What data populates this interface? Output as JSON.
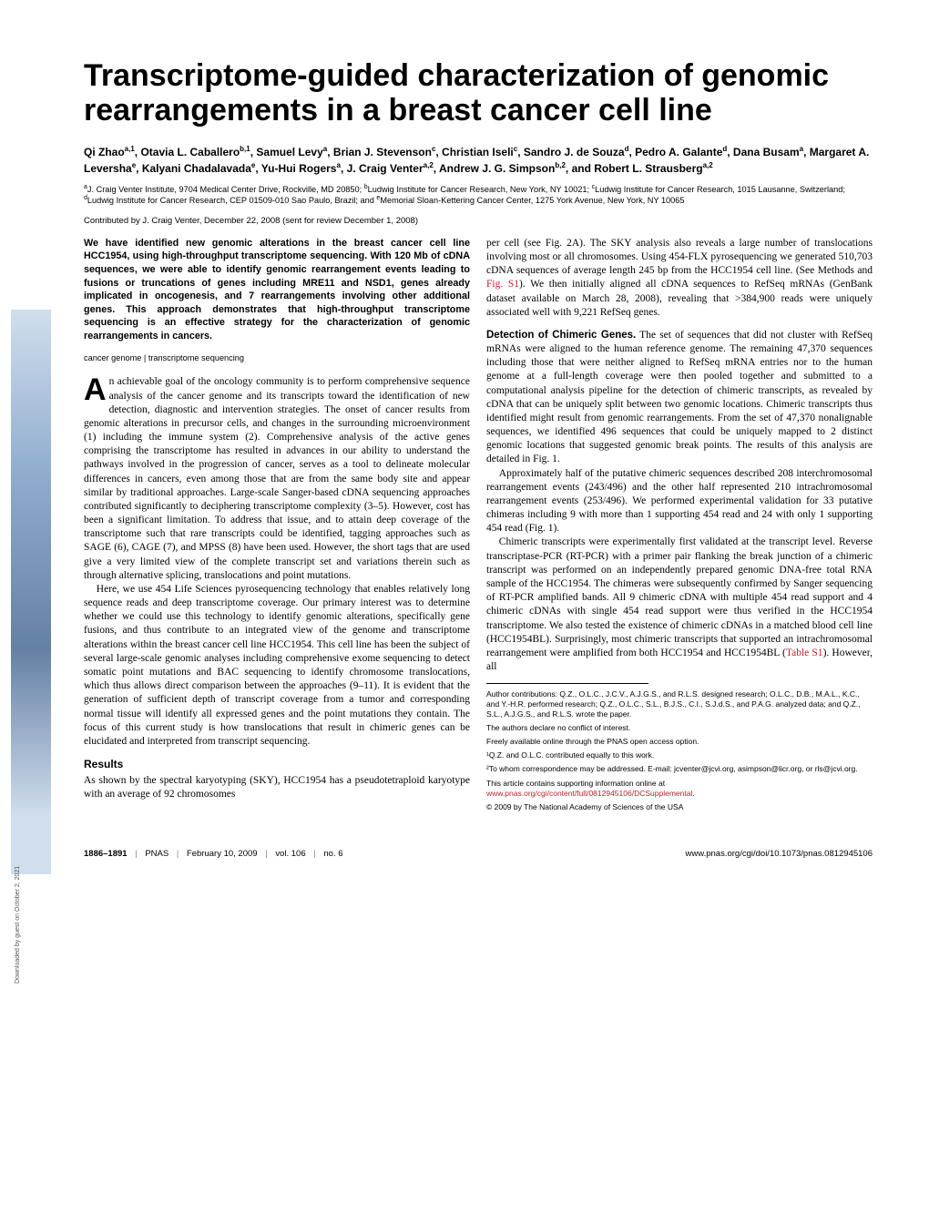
{
  "title": "Transcriptome-guided characterization of genomic rearrangements in a breast cancer cell line",
  "authors_html": "Qi Zhao<sup>a,1</sup>, Otavia L. Caballero<sup>b,1</sup>, Samuel Levy<sup>a</sup>, Brian J. Stevenson<sup>c</sup>, Christian Iseli<sup>c</sup>, Sandro J. de Souza<sup>d</sup>, Pedro A. Galante<sup>d</sup>, Dana Busam<sup>a</sup>, Margaret A. Leversha<sup>e</sup>, Kalyani Chadalavada<sup>e</sup>, Yu-Hui Rogers<sup>a</sup>, J. Craig Venter<sup>a,2</sup>, Andrew J. G. Simpson<sup>b,2</sup>, and Robert L. Strausberg<sup>a,2</sup>",
  "affiliations_html": "<sup>a</sup>J. Craig Venter Institute, 9704 Medical Center Drive, Rockville, MD 20850; <sup>b</sup>Ludwig Institute for Cancer Research, New York, NY 10021; <sup>c</sup>Ludwig Institute for Cancer Research, 1015 Lausanne, Switzerland; <sup>d</sup>Ludwig Institute for Cancer Research, CEP 01509-010 Sao Paulo, Brazil; and <sup>e</sup>Memorial Sloan-Kettering Cancer Center, 1275 York Avenue, New York, NY 10065",
  "contributed": "Contributed by J. Craig Venter, December 22, 2008 (sent for review December 1, 2008)",
  "abstract": "We have identified new genomic alterations in the breast cancer cell line HCC1954, using high-throughput transcriptome sequencing. With 120 Mb of cDNA sequences, we were able to identify genomic rearrangement events leading to fusions or truncations of genes including MRE11 and NSD1, genes already implicated in oncogenesis, and 7 rearrangements involving other additional genes. This approach demonstrates that high-throughput transcriptome sequencing is an effective strategy for the characterization of genomic rearrangements in cancers.",
  "keywords": "cancer genome | transcriptome sequencing",
  "col1_para1": "n achievable goal of the oncology community is to perform comprehensive sequence analysis of the cancer genome and its transcripts toward the identification of new detection, diagnostic and intervention strategies. The onset of cancer results from genomic alterations in precursor cells, and changes in the surrounding microenvironment (1) including the immune system (2). Comprehensive analysis of the active genes comprising the transcriptome has resulted in advances in our ability to understand the pathways involved in the progression of cancer, serves as a tool to delineate molecular differences in cancers, even among those that are from the same body site and appear similar by traditional approaches. Large-scale Sanger-based cDNA sequencing approaches contributed significantly to deciphering transcriptome complexity (3–5). However, cost has been a significant limitation. To address that issue, and to attain deep coverage of the transcriptome such that rare transcripts could be identified, tagging approaches such as SAGE (6), CAGE (7), and MPSS (8) have been used. However, the short tags that are used give a very limited view of the complete transcript set and variations therein such as through alternative splicing, translocations and point mutations.",
  "col1_para2": "Here, we use 454 Life Sciences pyrosequencing technology that enables relatively long sequence reads and deep transcriptome coverage. Our primary interest was to determine whether we could use this technology to identify genomic alterations, specifically gene fusions, and thus contribute to an integrated view of the genome and transcriptome alterations within the breast cancer cell line HCC1954. This cell line has been the subject of several large-scale genomic analyses including comprehensive exome sequencing to detect somatic point mutations and BAC sequencing to identify chromosome translocations, which thus allows direct comparison between the approaches (9–11). It is evident that the generation of sufficient depth of transcript coverage from a tumor and corresponding normal tissue will identify all expressed genes and the point mutations they contain. The focus of this current study is how translocations that result in chimeric genes can be elucidated and interpreted from transcript sequencing.",
  "results_heading": "Results",
  "col1_results": "As shown by the spectral karyotyping (SKY), HCC1954 has a pseudotetraploid karyotype with an average of 92 chromosomes",
  "col2_para1_pre": "per cell (see Fig. 2A). The SKY analysis also reveals a large number of translocations involving most or all chromosomes. Using 454-FLX pyrosequencing we generated 510,703 cDNA sequences of average length 245 bp from the HCC1954 cell line. (See Methods and ",
  "col2_para1_link": "Fig. S1",
  "col2_para1_post": "). We then initially aligned all cDNA sequences to RefSeq mRNAs (GenBank dataset available on March 28, 2008), revealing that >384,900 reads were uniquely associated well with 9,221 RefSeq genes.",
  "col2_heading": "Detection of Chimeric Genes.",
  "col2_para2": " The set of sequences that did not cluster with RefSeq mRNAs were aligned to the human reference genome. The remaining 47,370 sequences including those that were neither aligned to RefSeq mRNA entries nor to the human genome at a full-length coverage were then pooled together and submitted to a computational analysis pipeline for the detection of chimeric transcripts, as revealed by cDNA that can be uniquely split between two genomic locations. Chimeric transcripts thus identified might result from genomic rearrangements. From the set of 47,370 nonalignable sequences, we identified 496 sequences that could be uniquely mapped to 2 distinct genomic locations that suggested genomic break points. The results of this analysis are detailed in Fig. 1.",
  "col2_para3": "Approximately half of the putative chimeric sequences described 208 interchromosomal rearrangement events (243/496) and the other half represented 210 intrachromosomal rearrangement events (253/496). We performed experimental validation for 33 putative chimeras including 9 with more than 1 supporting 454 read and 24 with only 1 supporting 454 read (Fig. 1).",
  "col2_para4_pre": "Chimeric transcripts were experimentally first validated at the transcript level. Reverse transcriptase-PCR (RT-PCR) with a primer pair flanking the break junction of a chimeric transcript was performed on an independently prepared genomic DNA-free total RNA sample of the HCC1954. The chimeras were subsequently confirmed by Sanger sequencing of RT-PCR amplified bands. All 9 chimeric cDNA with multiple 454 read support and 4 chimeric cDNAs with single 454 read support were thus verified in the HCC1954 transcriptome. We also tested the existence of chimeric cDNAs in a matched blood cell line (HCC1954BL). Surprisingly, most chimeric transcripts that supported an intrachromosomal rearrangement were amplified from both HCC1954 and HCC1954BL (",
  "col2_para4_link": "Table S1",
  "col2_para4_post": "). However, all",
  "footnotes": {
    "contrib": "Author contributions: Q.Z., O.L.C., J.C.V., A.J.G.S., and R.L.S. designed research; O.L.C., D.B., M.A.L., K.C., and Y.-H.R. performed research; Q.Z., O.L.C., S.L., B.J.S., C.I., S.J.d.S., and P.A.G. analyzed data; and Q.Z., S.L., A.J.G.S., and R.L.S. wrote the paper.",
    "conflict": "The authors declare no conflict of interest.",
    "openaccess": "Freely available online through the PNAS open access option.",
    "equal": "¹Q.Z. and O.L.C. contributed equally to this work.",
    "corresp": "²To whom correspondence may be addressed. E-mail: jcventer@jcvi.org, asimpson@licr.org, or rls@jcvi.org.",
    "supp_pre": "This article contains supporting information online at ",
    "supp_link": "www.pnas.org/cgi/content/full/0812945106/DCSupplemental",
    "supp_post": ".",
    "copyright": "© 2009 by The National Academy of Sciences of the USA"
  },
  "footer": {
    "pages": "1886–1891",
    "pnas": "PNAS",
    "date": "February 10, 2009",
    "vol": "vol. 106",
    "no": "no. 6",
    "doi": "www.pnas.org/cgi/doi/10.1073/pnas.0812945106"
  },
  "sidebar_text": "Downloaded by guest on October 2, 2021"
}
